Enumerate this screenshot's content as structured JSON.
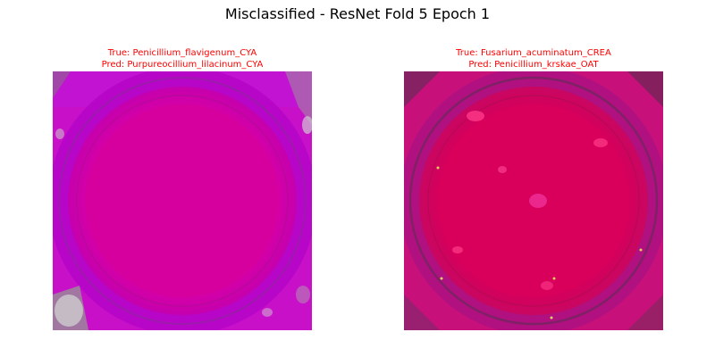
{
  "figure": {
    "title": "Misclassified - ResNet Fold 5 Epoch 1"
  },
  "panels": [
    {
      "true_label": "True: Penicillium_flavigenum_CYA",
      "pred_label": "Pred: Purpureocillium_lilacinum_CYA",
      "caption_color": "#ff0000",
      "image_desc": "petri-dish-magenta"
    },
    {
      "true_label": "True: Fusarium_acuminatum_CREA",
      "pred_label": "Pred: Penicillium_krskae_OAT",
      "caption_color": "#ff0000",
      "image_desc": "petri-dish-crimson"
    }
  ]
}
